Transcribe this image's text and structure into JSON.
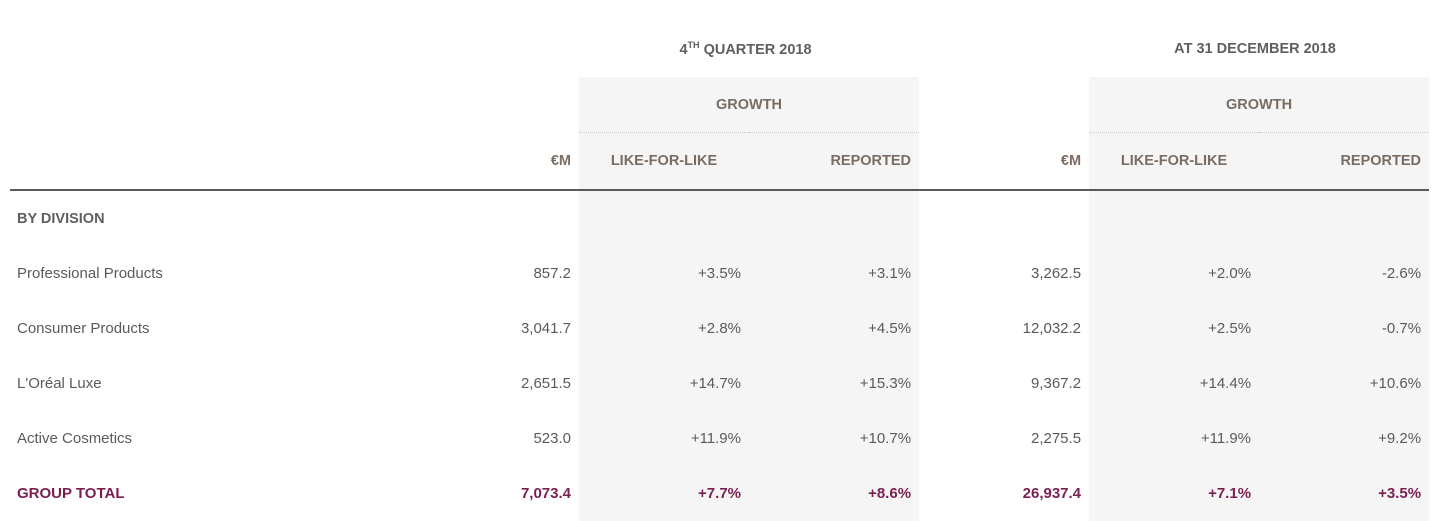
{
  "header": {
    "q4_prefix": "4",
    "q4_sup": "TH",
    "q4_suffix": " QUARTER 2018",
    "year": "AT 31 DECEMBER 2018",
    "growth": "GROWTH",
    "eur": "€M",
    "lfl": "LIKE-FOR-LIKE",
    "reported": "REPORTED"
  },
  "section": "BY DIVISION",
  "rows": [
    {
      "label": "Professional Products",
      "q_eur": "857.2",
      "q_lfl": "+3.5%",
      "q_rep": "+3.1%",
      "y_eur": "3,262.5",
      "y_lfl": "+2.0%",
      "y_rep": "-2.6%"
    },
    {
      "label": "Consumer Products",
      "q_eur": "3,041.7",
      "q_lfl": "+2.8%",
      "q_rep": "+4.5%",
      "y_eur": "12,032.2",
      "y_lfl": "+2.5%",
      "y_rep": "-0.7%"
    },
    {
      "label": "L'Oréal Luxe",
      "q_eur": "2,651.5",
      "q_lfl": "+14.7%",
      "q_rep": "+15.3%",
      "y_eur": "9,367.2",
      "y_lfl": "+14.4%",
      "y_rep": "+10.6%"
    },
    {
      "label": "Active Cosmetics",
      "q_eur": "523.0",
      "q_lfl": "+11.9%",
      "q_rep": "+10.7%",
      "y_eur": "2,275.5",
      "y_lfl": "+11.9%",
      "y_rep": "+9.2%"
    }
  ],
  "total": {
    "label": "GROUP TOTAL",
    "q_eur": "7,073.4",
    "q_lfl": "+7.7%",
    "q_rep": "+8.6%",
    "y_eur": "26,937.4",
    "y_lfl": "+7.1%",
    "y_rep": "+3.5%"
  },
  "colors": {
    "total": "#7b1f52",
    "shade": "#f5f5f5"
  }
}
